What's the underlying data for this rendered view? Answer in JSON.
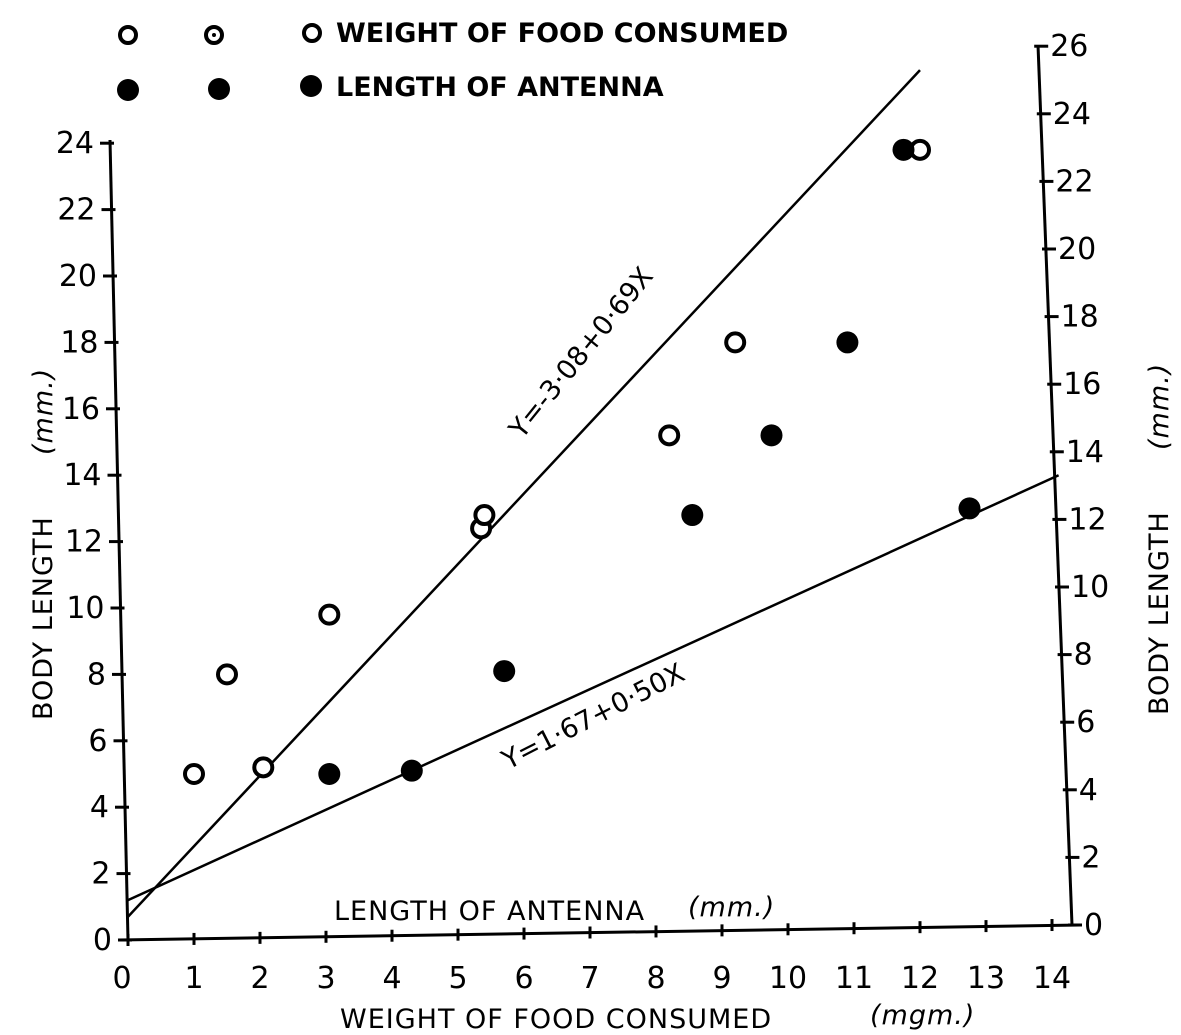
{
  "chart_data": {
    "type": "scatter",
    "title": "",
    "legend": {
      "placement": "top-left",
      "items": [
        {
          "label": "WEIGHT OF FOOD CONSUMED",
          "marker": "open-circle"
        },
        {
          "label": "LENGTH OF ANTENNA",
          "marker": "filled-circle"
        }
      ]
    },
    "axes": {
      "bottom": {
        "label": "WEIGHT OF FOOD CONSUMED (mgm.)",
        "range": [
          0,
          14
        ],
        "ticks": [
          "0",
          "1",
          "2",
          "3",
          "4",
          "5",
          "6",
          "7",
          "8",
          "9",
          "10",
          "11",
          "12",
          "13",
          "14"
        ]
      },
      "left": {
        "label": "BODY LENGTH (mm.)",
        "range": [
          0,
          24
        ],
        "ticks": [
          "0",
          "2",
          "4",
          "6",
          "8",
          "10",
          "12",
          "14",
          "16",
          "18",
          "20",
          "22",
          "24"
        ]
      },
      "inner_x": {
        "label": "LENGTH OF ANTENNA (mm.)"
      },
      "right": {
        "label": "BODY LENGTH (mm.)",
        "range": [
          0,
          26
        ],
        "ticks": [
          "0",
          "2",
          "4",
          "6",
          "8",
          "10",
          "12",
          "14",
          "16",
          "18",
          "20",
          "22",
          "24",
          "26"
        ]
      }
    },
    "series": [
      {
        "name": "WEIGHT OF FOOD CONSUMED",
        "marker": "open-circle",
        "axis": "left",
        "points": [
          [
            1.0,
            5.0
          ],
          [
            1.5,
            8.0
          ],
          [
            2.05,
            5.2
          ],
          [
            3.05,
            9.8
          ],
          [
            5.35,
            12.4
          ],
          [
            5.4,
            12.8
          ],
          [
            8.2,
            15.2
          ],
          [
            9.2,
            18.0
          ],
          [
            12.0,
            23.8
          ]
        ]
      },
      {
        "name": "LENGTH OF ANTENNA",
        "marker": "filled-circle",
        "axis": "left",
        "points": [
          [
            3.05,
            5.0
          ],
          [
            4.3,
            5.1
          ],
          [
            5.7,
            8.1
          ],
          [
            8.55,
            12.8
          ],
          [
            9.75,
            15.2
          ],
          [
            10.9,
            18.0
          ],
          [
            11.75,
            23.8
          ],
          [
            12.75,
            13.0
          ]
        ]
      }
    ],
    "lines": [
      {
        "label": "Y=-3·08+0·69X",
        "from": [
          0,
          0.7
        ],
        "to": [
          12.0,
          26.2
        ]
      },
      {
        "label": "Y=1·67+0·50X",
        "from": [
          0,
          1.2
        ],
        "to": [
          14.1,
          14.0
        ]
      }
    ]
  },
  "text": {
    "legend_food": "WEIGHT OF FOOD CONSUMED",
    "legend_antenna": "LENGTH OF ANTENNA",
    "eq_upper": "Y=-3·08+0·69X",
    "eq_lower": "Y=1·67+0·50X",
    "x_title": "WEIGHT OF FOOD CONSUMED",
    "x_unit": "(mgm.)",
    "inner_x_title": "LENGTH OF ANTENNA",
    "inner_x_unit": "(mm.)",
    "y_left_title": "BODY LENGTH",
    "y_left_unit": "(mm.)",
    "y_right_title": "BODY LENGTH",
    "y_right_unit": "(mm.)"
  }
}
